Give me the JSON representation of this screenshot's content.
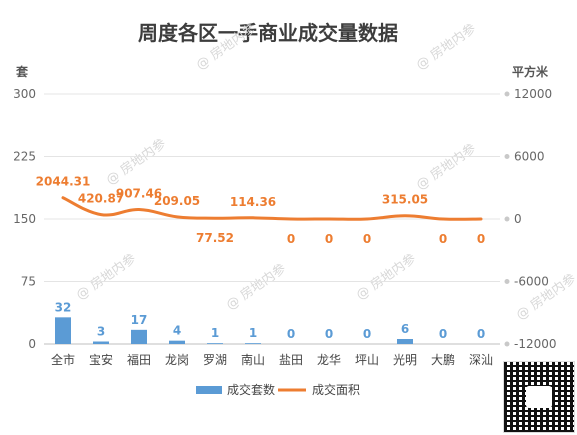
{
  "chart_data": {
    "type": "bar",
    "title": "周度各区一手商业成交量数据",
    "left_axis_unit": "套",
    "right_axis_unit": "平方米",
    "categories": [
      "全市",
      "宝安",
      "福田",
      "龙岗",
      "罗湖",
      "南山",
      "盐田",
      "龙华",
      "坪山",
      "光明",
      "大鹏",
      "深汕"
    ],
    "left_ticks": [
      "0",
      "75",
      "150",
      "225",
      "300"
    ],
    "right_ticks": [
      "-12000",
      "-6000",
      "0",
      "6000",
      "12000"
    ],
    "ylim_left": [
      0,
      300
    ],
    "ylim_right": [
      -12000,
      12000
    ],
    "grid": true,
    "legend_position": "bottom",
    "series": [
      {
        "name": "成交套数",
        "type": "bar",
        "axis": "left",
        "color": "#5b9bd5",
        "values": [
          32,
          3,
          17,
          4,
          1,
          1,
          0,
          0,
          0,
          6,
          0,
          0
        ],
        "labels": [
          "32",
          "3",
          "17",
          "4",
          "1",
          "1",
          "0",
          "0",
          "0",
          "6",
          "0",
          "0"
        ]
      },
      {
        "name": "成交面积",
        "type": "line",
        "axis": "right",
        "color": "#ed7d31",
        "values": [
          2044.31,
          420.87,
          907.46,
          209.05,
          77.52,
          114.36,
          0,
          0,
          0,
          315.05,
          0,
          0
        ],
        "labels": [
          "2044.31",
          "420.87",
          "907.46",
          "209.05",
          "77.52",
          "114.36",
          "0",
          "0",
          "0",
          "315.05",
          "0",
          "0"
        ]
      }
    ]
  },
  "watermark_text": "@ 房地内参"
}
